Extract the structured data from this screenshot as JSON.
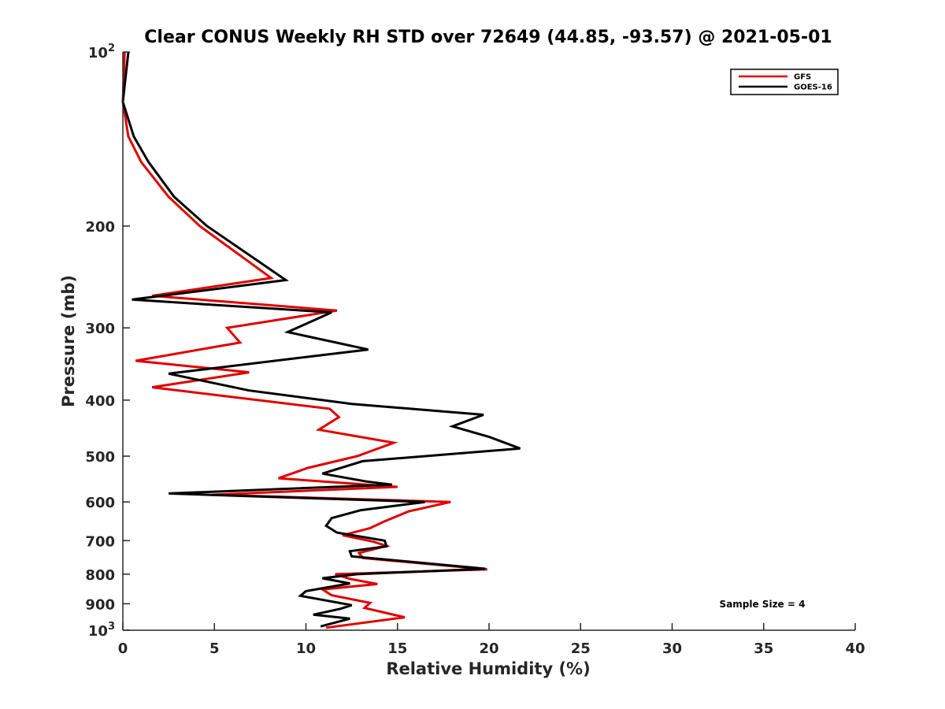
{
  "chart_data": {
    "type": "line",
    "title": "Clear CONUS Weekly RH STD over 72649 (44.85, -93.57) @ 2021-05-01",
    "xlabel": "Relative Humidity (%)",
    "ylabel": "Pressure (mb)",
    "xlim": [
      0,
      40
    ],
    "ylim": [
      100,
      1000
    ],
    "y_scale": "log",
    "y_reversed": true,
    "x_ticks": [
      0,
      5,
      10,
      15,
      20,
      25,
      30,
      35,
      40
    ],
    "y_ticks": [
      {
        "value": 100,
        "base": "10",
        "exp": "2"
      },
      {
        "value": 200,
        "label": "200"
      },
      {
        "value": 300,
        "label": "300"
      },
      {
        "value": 400,
        "label": "400"
      },
      {
        "value": 500,
        "label": "500"
      },
      {
        "value": 600,
        "label": "600"
      },
      {
        "value": 700,
        "label": "700"
      },
      {
        "value": 800,
        "label": "800"
      },
      {
        "value": 900,
        "label": "900"
      },
      {
        "value": 1000,
        "base": "10",
        "exp": "3"
      }
    ],
    "grid": false,
    "legend_position": "top-right",
    "annotation": "Sample Size = 4",
    "series": [
      {
        "name": "GFS",
        "color": "#e00000",
        "points": [
          [
            0.1,
            100
          ],
          [
            0.0,
            122
          ],
          [
            0.3,
            140
          ],
          [
            1.0,
            155
          ],
          [
            2.5,
            178
          ],
          [
            4.2,
            200
          ],
          [
            7.0,
            232
          ],
          [
            8.1,
            246
          ],
          [
            1.6,
            264
          ],
          [
            11.7,
            280
          ],
          [
            5.7,
            300
          ],
          [
            6.4,
            318
          ],
          [
            0.7,
            342
          ],
          [
            6.9,
            358
          ],
          [
            1.6,
            380
          ],
          [
            11.3,
            414
          ],
          [
            11.8,
            428
          ],
          [
            10.7,
            450
          ],
          [
            14.8,
            474
          ],
          [
            12.8,
            500
          ],
          [
            10.1,
            524
          ],
          [
            8.5,
            546
          ],
          [
            15.0,
            565
          ],
          [
            4.9,
            583
          ],
          [
            17.9,
            600
          ],
          [
            15.6,
            623
          ],
          [
            14.3,
            648
          ],
          [
            13.5,
            666
          ],
          [
            12.0,
            685
          ],
          [
            13.7,
            703
          ],
          [
            14.4,
            715
          ],
          [
            12.9,
            735
          ],
          [
            13.1,
            750
          ],
          [
            19.9,
            785
          ],
          [
            11.6,
            800
          ],
          [
            12.4,
            815
          ],
          [
            13.9,
            832
          ],
          [
            10.9,
            850
          ],
          [
            11.4,
            870
          ],
          [
            13.5,
            897
          ],
          [
            13.2,
            915
          ],
          [
            15.4,
            950
          ],
          [
            11.1,
            990
          ]
        ]
      },
      {
        "name": "GOES-16",
        "color": "#000000",
        "points": [
          [
            0.3,
            100
          ],
          [
            0.0,
            122
          ],
          [
            0.6,
            140
          ],
          [
            1.4,
            155
          ],
          [
            2.8,
            178
          ],
          [
            4.6,
            200
          ],
          [
            8.9,
            248
          ],
          [
            0.5,
            268
          ],
          [
            11.4,
            282
          ],
          [
            9.0,
            305
          ],
          [
            13.4,
            327
          ],
          [
            2.5,
            360
          ],
          [
            6.9,
            385
          ],
          [
            12.5,
            406
          ],
          [
            19.7,
            424
          ],
          [
            18.0,
            444
          ],
          [
            20.0,
            463
          ],
          [
            21.7,
            485
          ],
          [
            13.1,
            510
          ],
          [
            10.9,
            536
          ],
          [
            13.3,
            553
          ],
          [
            14.7,
            560
          ],
          [
            2.5,
            580
          ],
          [
            16.5,
            600
          ],
          [
            13.0,
            620
          ],
          [
            11.4,
            640
          ],
          [
            11.1,
            660
          ],
          [
            11.7,
            678
          ],
          [
            14.3,
            700
          ],
          [
            14.4,
            716
          ],
          [
            12.4,
            730
          ],
          [
            12.5,
            745
          ],
          [
            19.8,
            783
          ],
          [
            12.8,
            800
          ],
          [
            10.9,
            813
          ],
          [
            12.4,
            830
          ],
          [
            10.0,
            856
          ],
          [
            9.7,
            872
          ],
          [
            12.5,
            905
          ],
          [
            11.9,
            918
          ],
          [
            10.4,
            940
          ],
          [
            12.4,
            955
          ],
          [
            10.8,
            985
          ]
        ]
      }
    ]
  }
}
